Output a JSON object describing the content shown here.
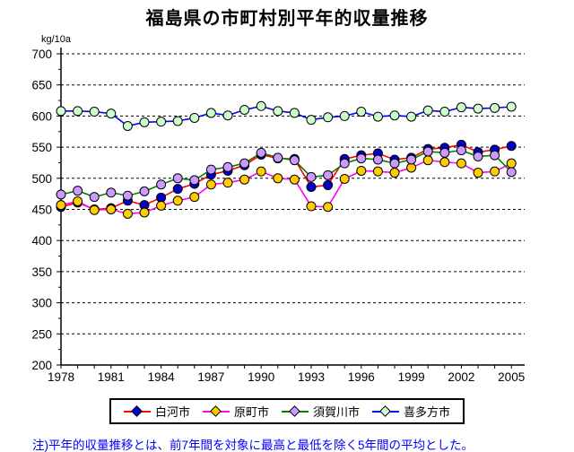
{
  "title": "福島県の市町村別平年的収量推移",
  "note": "注)平年的収量推移とは、前7年間を対象に最高と最低を除く5年間の平均とした。",
  "chart_data": {
    "type": "line",
    "title": "福島県の市町村別平年的収量推移",
    "unit_label": "kg/10a",
    "xlabel": "",
    "ylabel": "kg/10a",
    "ylim": [
      200,
      700
    ],
    "y_ticks": [
      200,
      250,
      300,
      350,
      400,
      450,
      500,
      550,
      600,
      650,
      700
    ],
    "x": [
      1978,
      1979,
      1980,
      1981,
      1982,
      1983,
      1984,
      1985,
      1986,
      1987,
      1988,
      1989,
      1990,
      1991,
      1992,
      1993,
      1994,
      1995,
      1996,
      1997,
      1998,
      1999,
      2000,
      2001,
      2002,
      2003,
      2004,
      2005
    ],
    "x_tick_labels": [
      "1978",
      "1981",
      "1984",
      "1987",
      "1990",
      "1993",
      "1996",
      "1999",
      "2002",
      "2005"
    ],
    "grid": "horizontal-dashed",
    "legend_position": "bottom",
    "series": [
      {
        "name": "白河市",
        "line_color": "#ff0000",
        "marker_color": "#0000cc",
        "values": [
          454,
          461,
          450,
          452,
          464,
          457,
          469,
          483,
          491,
          506,
          512,
          521,
          538,
          532,
          531,
          486,
          489,
          531,
          537,
          540,
          530,
          533,
          547,
          549,
          554,
          542,
          546,
          552
        ]
      },
      {
        "name": "原町市",
        "line_color": "#ff00ff",
        "marker_color": "#ffcc00",
        "values": [
          457,
          463,
          449,
          450,
          443,
          445,
          456,
          464,
          470,
          490,
          493,
          498,
          511,
          500,
          498,
          455,
          454,
          499,
          512,
          511,
          509,
          517,
          529,
          526,
          524,
          509,
          511,
          524
        ]
      },
      {
        "name": "須賀川市",
        "line_color": "#008000",
        "marker_color": "#cc99ff",
        "values": [
          474,
          480,
          470,
          477,
          472,
          479,
          490,
          500,
          497,
          514,
          518,
          524,
          541,
          533,
          529,
          502,
          505,
          524,
          532,
          530,
          524,
          530,
          543,
          541,
          545,
          535,
          537,
          510
        ]
      },
      {
        "name": "喜多方市",
        "line_color": "#0000ff",
        "marker_color": "#ccffcc",
        "values": [
          608,
          608,
          607,
          604,
          584,
          590,
          591,
          592,
          597,
          605,
          601,
          610,
          616,
          608,
          605,
          594,
          598,
          600,
          607,
          599,
          601,
          599,
          609,
          607,
          614,
          612,
          613,
          615
        ]
      }
    ]
  }
}
